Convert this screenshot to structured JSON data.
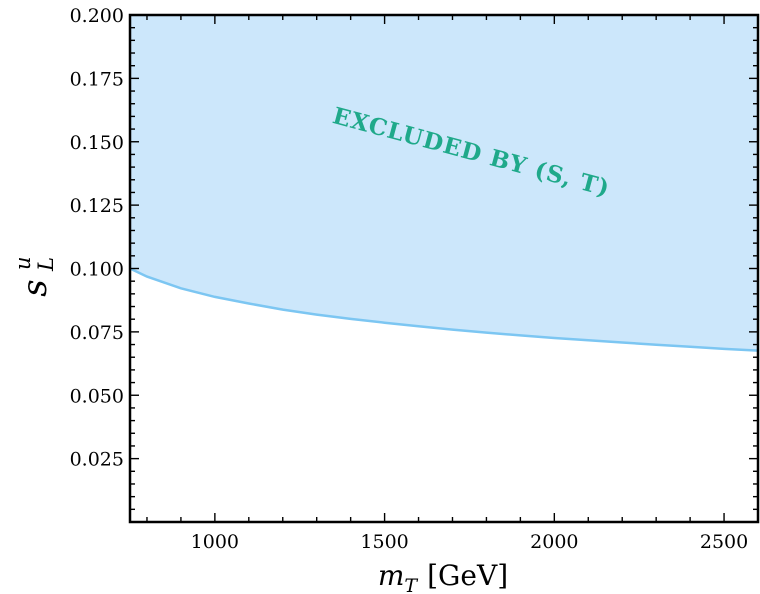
{
  "chart_data": {
    "type": "area",
    "xlabel_var": "m",
    "xlabel_sub": "T",
    "xlabel_unit": "[GeV]",
    "ylabel_var": "s",
    "ylabel_sup": "u",
    "ylabel_sub": "L",
    "xlim": [
      750,
      2600
    ],
    "ylim": [
      0.0,
      0.2
    ],
    "x_ticks": [
      1000,
      1500,
      2000,
      2500
    ],
    "x_tick_labels": [
      "1000",
      "1500",
      "2000",
      "2500"
    ],
    "y_ticks": [
      0.025,
      0.05,
      0.075,
      0.1,
      0.125,
      0.15,
      0.175,
      0.2
    ],
    "y_tick_labels": [
      "0.025",
      "0.050",
      "0.075",
      "0.100",
      "0.125",
      "0.150",
      "0.175",
      "0.200"
    ],
    "grid": false,
    "series": [
      {
        "x": [
          750,
          800,
          900,
          1000,
          1100,
          1200,
          1300,
          1400,
          1500,
          1600,
          1700,
          1800,
          1900,
          2000,
          2100,
          2200,
          2300,
          2400,
          2500,
          2600
        ],
        "values": [
          0.1,
          0.0968,
          0.0922,
          0.0888,
          0.0862,
          0.0838,
          0.0818,
          0.0801,
          0.0786,
          0.0772,
          0.0759,
          0.0747,
          0.0736,
          0.0726,
          0.0717,
          0.0708,
          0.0699,
          0.0691,
          0.0683,
          0.0676
        ]
      }
    ],
    "annotations": [
      {
        "text": "EXCLUDED BY (S,  T)",
        "x": 1750,
        "y": 0.143,
        "rotation_deg": 15
      }
    ],
    "colors": {
      "fill": "#cce7fb",
      "line": "#7cc6f2",
      "annotation": "#1fa98a"
    }
  }
}
